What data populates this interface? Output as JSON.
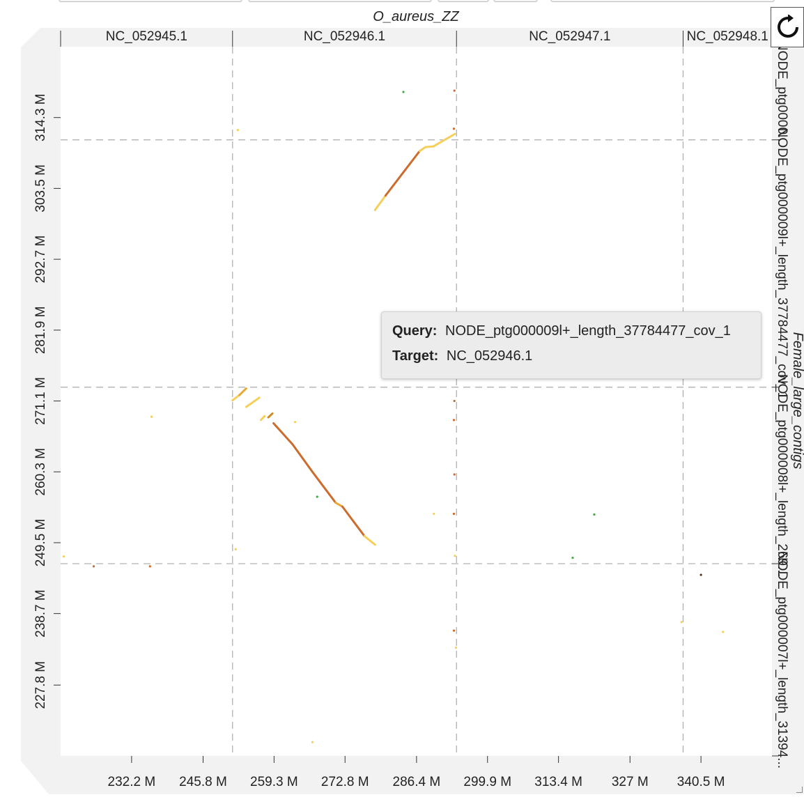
{
  "chart_data": {
    "type": "scatter",
    "title": "O_aureus_ZZ",
    "ylabel": "Female_large_contigs",
    "x_ticks": [
      "232.2 M",
      "245.8 M",
      "259.3 M",
      "272.8 M",
      "286.4 M",
      "299.9 M",
      "313.4 M",
      "327 M",
      "340.5 M"
    ],
    "y_ticks": [
      "314.3 M",
      "303.5 M",
      "292.7 M",
      "281.9 M",
      "271.1 M",
      "260.3 M",
      "249.5 M",
      "238.7 M",
      "227.8 M"
    ],
    "x_range": [
      218.7,
      354.0
    ],
    "y_range": [
      217.0,
      325.1
    ],
    "x_sequences": [
      {
        "name": "NC_052945.1",
        "start": 218.7,
        "end": 251.4
      },
      {
        "name": "NC_052946.1",
        "start": 251.4,
        "end": 294.0
      },
      {
        "name": "NC_052947.1",
        "start": 294.0,
        "end": 337.1
      },
      {
        "name": "NC_052948.1",
        "start": 337.1,
        "end": 354.0
      }
    ],
    "y_sequences": [
      {
        "name": "NODE_ptg0000...",
        "start": 310.9,
        "end": 325.1
      },
      {
        "name": "NODE_ptg000009l+_length_37784477_cov_1",
        "start": 273.2,
        "end": 310.9
      },
      {
        "name": "NODE_ptg000008l+_length_269...",
        "start": 246.3,
        "end": 273.2
      },
      {
        "name": "NODE_ptg000007l+_length_31394...",
        "start": 217.0,
        "end": 246.3
      }
    ],
    "segments": [
      {
        "x": [
          278.5,
          280.5
        ],
        "y": [
          300.2,
          302.4
        ],
        "color": "#f5cf5a"
      },
      {
        "x": [
          280.5,
          287.0
        ],
        "y": [
          302.4,
          309.2
        ],
        "color": "#cc6b2c"
      },
      {
        "x": [
          287.0,
          288.1
        ],
        "y": [
          309.2,
          309.8
        ],
        "color": "#f5cf5a"
      },
      {
        "x": [
          288.1,
          289.6
        ],
        "y": [
          309.8,
          309.9
        ],
        "color": "#f5cf5a"
      },
      {
        "x": [
          289.6,
          293.7
        ],
        "y": [
          309.9,
          311.8
        ],
        "color": "#f5cf5a"
      },
      {
        "x": [
          251.4,
          252.7
        ],
        "y": [
          271.2,
          272.0
        ],
        "color": "#f5cf5a"
      },
      {
        "x": [
          252.7,
          254.0
        ],
        "y": [
          272.0,
          273.0
        ],
        "color": "#e8a838"
      },
      {
        "x": [
          254.0,
          256.5
        ],
        "y": [
          270.2,
          271.6
        ],
        "color": "#f5cf5a"
      },
      {
        "x": [
          256.8,
          257.5
        ],
        "y": [
          268.2,
          268.8
        ],
        "color": "#f5cf5a"
      },
      {
        "x": [
          258.2,
          259.0
        ],
        "y": [
          268.6,
          269.2
        ],
        "color": "#cc8a20"
      },
      {
        "x": [
          259.2,
          262.8
        ],
        "y": [
          267.7,
          264.5
        ],
        "color": "#cc6b2c"
      },
      {
        "x": [
          262.8,
          266.5
        ],
        "y": [
          264.5,
          260.4
        ],
        "color": "#cc6b2c"
      },
      {
        "x": [
          266.5,
          271.0
        ],
        "y": [
          260.4,
          255.6
        ],
        "color": "#cc6b2c"
      },
      {
        "x": [
          271.0,
          272.3
        ],
        "y": [
          255.6,
          255.0
        ],
        "color": "#e8a838"
      },
      {
        "x": [
          272.3,
          276.5
        ],
        "y": [
          255.0,
          250.5
        ],
        "color": "#cc6b2c"
      },
      {
        "x": [
          276.5,
          278.5
        ],
        "y": [
          250.5,
          249.2
        ],
        "color": "#f5cf5a"
      }
    ],
    "points": [
      {
        "x": 283.9,
        "y": 318.2,
        "color": "#44aa44"
      },
      {
        "x": 293.6,
        "y": 318.4,
        "color": "#cc6b2c"
      },
      {
        "x": 252.4,
        "y": 312.4,
        "color": "#f5cf5a"
      },
      {
        "x": 293.5,
        "y": 312.6,
        "color": "#cc6b2c"
      },
      {
        "x": 293.6,
        "y": 271.1,
        "color": "#cc6b2c"
      },
      {
        "x": 293.5,
        "y": 268.2,
        "color": "#cc6b2c"
      },
      {
        "x": 263.3,
        "y": 267.9,
        "color": "#f5cf5a"
      },
      {
        "x": 236.0,
        "y": 268.7,
        "color": "#f5cf5a"
      },
      {
        "x": 293.6,
        "y": 259.9,
        "color": "#cc6b2c"
      },
      {
        "x": 267.5,
        "y": 256.5,
        "color": "#44aa44"
      },
      {
        "x": 289.7,
        "y": 253.9,
        "color": "#f5cf5a"
      },
      {
        "x": 293.5,
        "y": 253.9,
        "color": "#cc6b2c"
      },
      {
        "x": 320.2,
        "y": 253.8,
        "color": "#44aa44"
      },
      {
        "x": 252.0,
        "y": 248.5,
        "color": "#f5cf5a"
      },
      {
        "x": 293.7,
        "y": 247.5,
        "color": "#f5cf5a"
      },
      {
        "x": 316.1,
        "y": 247.2,
        "color": "#44aa44"
      },
      {
        "x": 219.3,
        "y": 247.4,
        "color": "#f5cf5a"
      },
      {
        "x": 225.0,
        "y": 245.9,
        "color": "#cc6b2c"
      },
      {
        "x": 235.7,
        "y": 245.9,
        "color": "#cc6b2c"
      },
      {
        "x": 340.5,
        "y": 244.6,
        "color": "#553322"
      },
      {
        "x": 336.8,
        "y": 237.4,
        "color": "#f5cf5a"
      },
      {
        "x": 344.7,
        "y": 235.9,
        "color": "#f5cf5a"
      },
      {
        "x": 293.5,
        "y": 236.1,
        "color": "#cc6b2c"
      },
      {
        "x": 293.9,
        "y": 233.5,
        "color": "#f5cf5a"
      },
      {
        "x": 266.6,
        "y": 219.1,
        "color": "#f5cf5a"
      }
    ]
  },
  "tooltip": {
    "query_label": "Query:",
    "query_value": "NODE_ptg000009l+_length_37784477_cov_1",
    "target_label": "Target:",
    "target_value": "NC_052946.1"
  },
  "refresh_icon": "refresh-icon"
}
